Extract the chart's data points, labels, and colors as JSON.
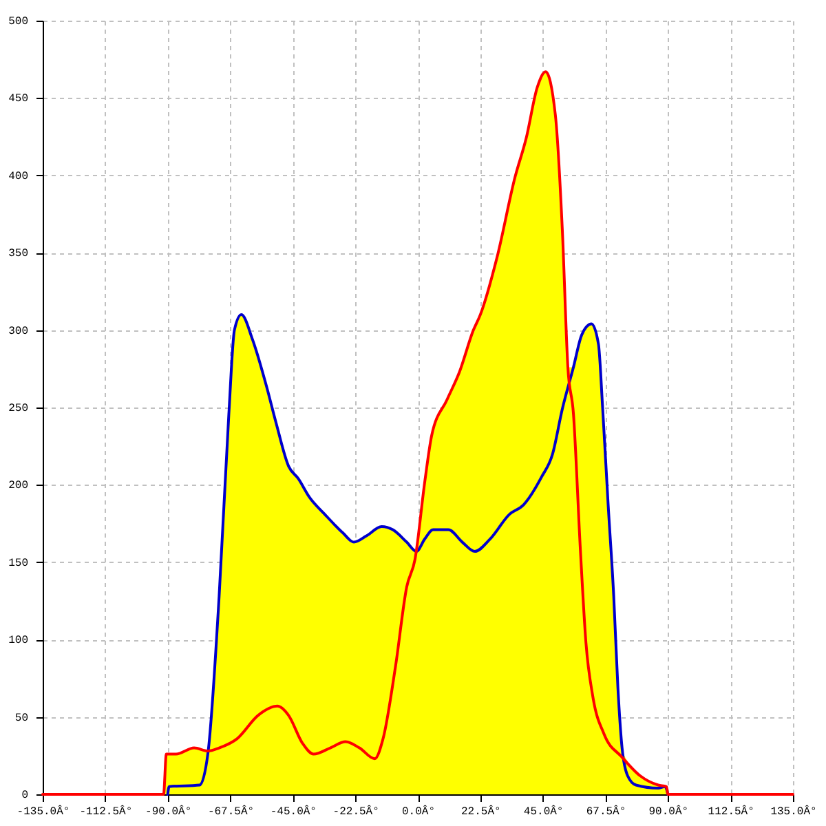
{
  "chart_data": {
    "type": "line",
    "xlim": [
      -135,
      135
    ],
    "xticks": [
      {
        "value": -135,
        "label": "-135.0Â°"
      },
      {
        "value": -112.5,
        "label": "-112.5Â°"
      },
      {
        "value": -90,
        "label": "-90.0Â°"
      },
      {
        "value": -67.5,
        "label": "-67.5Â°"
      },
      {
        "value": -45,
        "label": "-45.0Â°"
      },
      {
        "value": -22.5,
        "label": "-22.5Â°"
      },
      {
        "value": 0,
        "label": "0.0Â°"
      },
      {
        "value": 22.5,
        "label": "22.5Â°"
      },
      {
        "value": 45,
        "label": "45.0Â°"
      },
      {
        "value": 67.5,
        "label": "67.5Â°"
      },
      {
        "value": 90,
        "label": "90.0Â°"
      },
      {
        "value": 112.5,
        "label": "112.5Â°"
      },
      {
        "value": 135,
        "label": "135.0Â°"
      }
    ],
    "ylim": [
      0,
      500
    ],
    "yticks": [
      0,
      50,
      100,
      150,
      200,
      250,
      300,
      350,
      400,
      450,
      500
    ],
    "grid": true,
    "series": [
      {
        "type": "area",
        "color": "#ffff00",
        "x": [
          -91.5,
          -90.5,
          -87,
          -80.5,
          -75.5,
          -71.5,
          -68,
          -66,
          -63.5,
          -59.5,
          -54.5,
          -51,
          -46.5,
          -43,
          -39,
          -33.5,
          -27,
          -23,
          -18.5,
          -13,
          -9,
          -4,
          -0.5,
          2.5,
          5,
          10.5,
          15,
          20,
          22.5,
          28.5,
          35,
          39,
          43,
          46,
          49.5,
          52,
          54,
          56,
          59,
          62.5,
          65,
          66.5,
          68.5,
          70.5,
          72,
          73.5,
          76,
          80,
          86.5,
          89.5,
          90
        ],
        "values": [
          0,
          26,
          26,
          30,
          28,
          128,
          246,
          300,
          310,
          294,
          264,
          240,
          212,
          204,
          192,
          181,
          169,
          163,
          167,
          173,
          171,
          163,
          157,
          202,
          232,
          255,
          273,
          300,
          310,
          347,
          399,
          424,
          457,
          467,
          439,
          365,
          276,
          276,
          297,
          304,
          291,
          250,
          187,
          128,
          69,
          30,
          20,
          12,
          6,
          5,
          0
        ]
      },
      {
        "color": "#0000cc",
        "x": [
          -90,
          -89.5,
          -78.5,
          -75.5,
          -71.5,
          -68,
          -66,
          -63.5,
          -59.5,
          -54.5,
          -51,
          -46.5,
          -43,
          -39,
          -33.5,
          -27,
          -23,
          -18.5,
          -13,
          -9,
          -4,
          -0.5,
          2.5,
          5.5,
          11,
          16,
          20.5,
          26,
          33,
          38,
          44.5,
          48.5,
          52,
          56,
          59,
          62.5,
          65,
          66.5,
          68.5,
          70.5,
          72,
          73.5,
          75.5,
          78.5,
          86.5,
          89,
          90
        ],
        "values": [
          0,
          5,
          6,
          27,
          128,
          246,
          300,
          310,
          294,
          264,
          240,
          212,
          204,
          192,
          181,
          169,
          163,
          167,
          173,
          171,
          163,
          157,
          165,
          171,
          171,
          163,
          157,
          165,
          181,
          187,
          205,
          220,
          249,
          276,
          297,
          304,
          291,
          250,
          187,
          128,
          69,
          30,
          12,
          6,
          4,
          5,
          0
        ]
      },
      {
        "color": "#ff0000",
        "x": [
          -135,
          -91.5,
          -90.5,
          -87,
          -80.5,
          -75.5,
          -71.5,
          -65,
          -57.5,
          -50.5,
          -46.5,
          -41.5,
          -37.5,
          -31.5,
          -26,
          -21,
          -15.5,
          -12.5,
          -8,
          -4,
          -1,
          2.5,
          5,
          10.5,
          15,
          20,
          22.5,
          28.5,
          35,
          39,
          43,
          46,
          49.5,
          52,
          54,
          56,
          58.5,
          60.5,
          63,
          67,
          73.5,
          80,
          86.5,
          89.5,
          90,
          135
        ],
        "values": [
          0,
          0,
          26,
          26,
          30,
          28,
          30,
          36,
          51,
          57,
          51,
          33,
          26,
          30,
          34,
          30,
          23,
          36,
          83,
          134,
          152,
          202,
          232,
          255,
          273,
          300,
          310,
          347,
          399,
          424,
          457,
          467,
          439,
          365,
          276,
          246,
          158,
          98,
          63,
          39,
          24,
          12,
          6,
          5,
          0,
          0
        ]
      }
    ]
  }
}
